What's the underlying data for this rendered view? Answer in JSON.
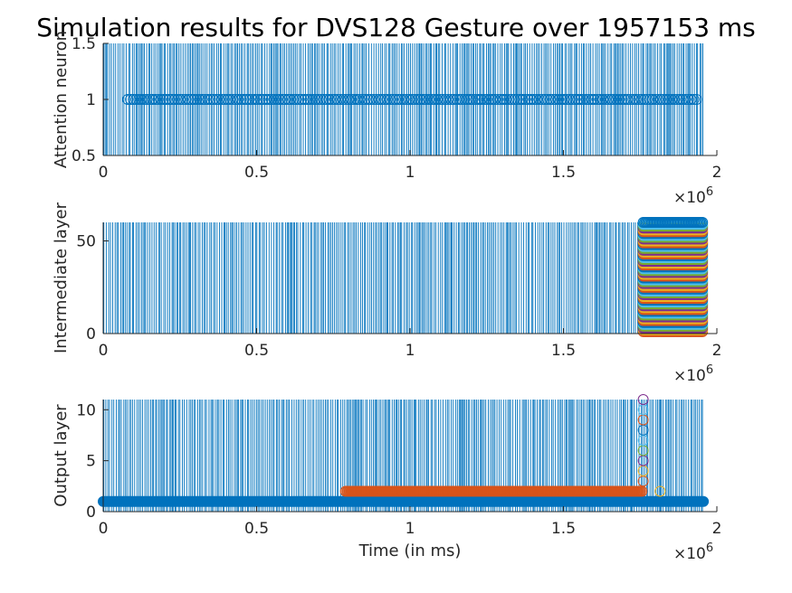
{
  "figure": {
    "title": "Simulation results for DVS128 Gesture over 1957153 ms"
  },
  "colors": {
    "spike": "#0072BD",
    "marker_blue": "#0072BD",
    "marker_orange": "#D95319",
    "marker_yellow": "#EDB120",
    "marker_purple": "#7E2F8E",
    "marker_green": "#77AC30",
    "marker_cyan": "#4DBEEE",
    "axis": "#262626"
  },
  "chart_data": [
    {
      "type": "scatter",
      "name": "attention",
      "title": "",
      "xlabel": "",
      "ylabel": "Attention neuron",
      "xlim": [
        0,
        2000000
      ],
      "ylim": [
        0.5,
        1.5
      ],
      "xticks": [
        "0",
        "0.5",
        "1",
        "1.5",
        "2"
      ],
      "yticks": [
        "0.5",
        "1",
        "1.5"
      ],
      "yticks_values": [
        0.5,
        1,
        1.5
      ],
      "x_exponent": "6",
      "spike_range": [
        0,
        1957153
      ],
      "series": [
        {
          "marker": "open-circle",
          "y": 1,
          "x_start": 80000,
          "x_end": 1935000
        }
      ]
    },
    {
      "type": "scatter",
      "name": "intermediate",
      "title": "",
      "xlabel": "",
      "ylabel": "Intermediate layer",
      "xlim": [
        0,
        2000000
      ],
      "ylim": [
        0,
        60
      ],
      "xticks": [
        "0",
        "0.5",
        "1",
        "1.5",
        "2"
      ],
      "yticks": [
        "0",
        "50"
      ],
      "yticks_values": [
        0,
        50
      ],
      "x_exponent": "6",
      "spike_range": [
        0,
        1957153
      ],
      "neuron_block": {
        "x_start": 1760000,
        "x_end": 1957153,
        "y_start": 1,
        "y_end": 60
      }
    },
    {
      "type": "scatter",
      "name": "output",
      "title": "",
      "xlabel": "Time (in ms)",
      "ylabel": "Output layer",
      "xlim": [
        0,
        2000000
      ],
      "ylim": [
        0,
        11
      ],
      "xticks": [
        "0",
        "0.5",
        "1",
        "1.5",
        "2"
      ],
      "yticks": [
        "0",
        "5",
        "10"
      ],
      "yticks_values": [
        0,
        5,
        10
      ],
      "x_exponent": "6",
      "spike_range": [
        0,
        1957153
      ],
      "series": [
        {
          "marker": "filled-circle",
          "y": 1,
          "x_start": 0,
          "x_end": 1957153
        },
        {
          "marker": "filled-circle",
          "y": 2,
          "x_start": 790000,
          "x_end": 1760000
        },
        {
          "marker": "open-circle-column",
          "x": 1760000,
          "y_values": [
            3,
            4,
            5,
            6,
            7,
            8,
            9,
            10,
            11
          ]
        },
        {
          "marker": "open-circle",
          "x": 1815000,
          "y": 2
        }
      ]
    }
  ]
}
